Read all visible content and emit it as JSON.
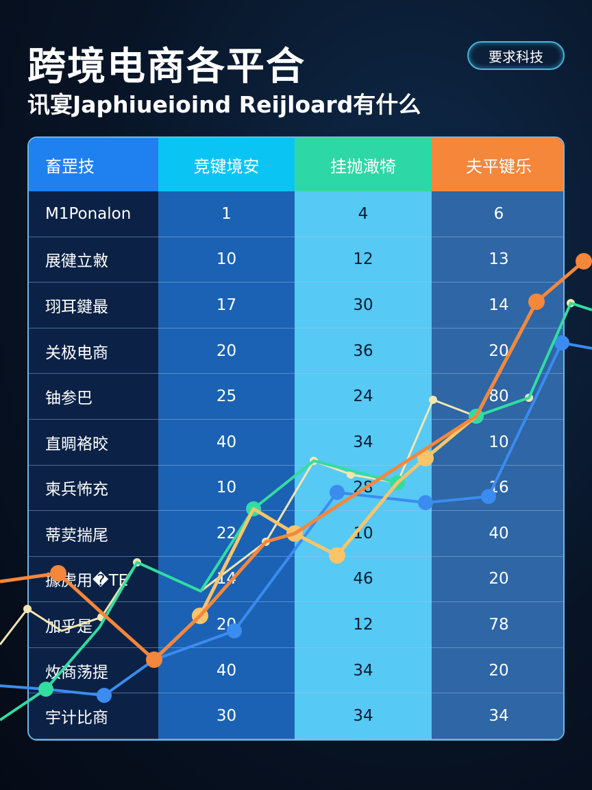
{
  "header": {
    "title": "跨境电商各平合",
    "subtitle": "讯宴Japhiueioind Reijloard有什么",
    "badge": "要求科技"
  },
  "table": {
    "columns": [
      "畜罡技",
      "竞键境安",
      "挂抛澉犄",
      "夫平键乐"
    ],
    "rows": [
      [
        "M1Ponalon",
        "1",
        "4",
        "6"
      ],
      [
        "展徤立敹",
        "10",
        "12",
        "13"
      ],
      [
        "珝耳鍵最",
        "17",
        "30",
        "14"
      ],
      [
        "关极电商",
        "20",
        "36",
        "20"
      ],
      [
        "铀参巴",
        "25",
        "24",
        "80"
      ],
      [
        "直晭袼晈",
        "40",
        "34",
        "10"
      ],
      [
        "柬兵怖充",
        "10",
        "28",
        "16"
      ],
      [
        "蒂荬揣尾",
        "22",
        "10",
        "40"
      ],
      [
        "據虎用�TE",
        "14",
        "46",
        "20"
      ],
      [
        "加乎是",
        "20",
        "12",
        "78"
      ],
      [
        "炇商荡提",
        "40",
        "34",
        "20"
      ],
      [
        "宇计比商",
        "30",
        "34",
        "34"
      ]
    ]
  },
  "colors": {
    "orange": "#f5873b",
    "peach": "#f9c46a",
    "blue": "#3b8cf0",
    "green": "#33dca0",
    "cream": "#f3e6b0"
  }
}
